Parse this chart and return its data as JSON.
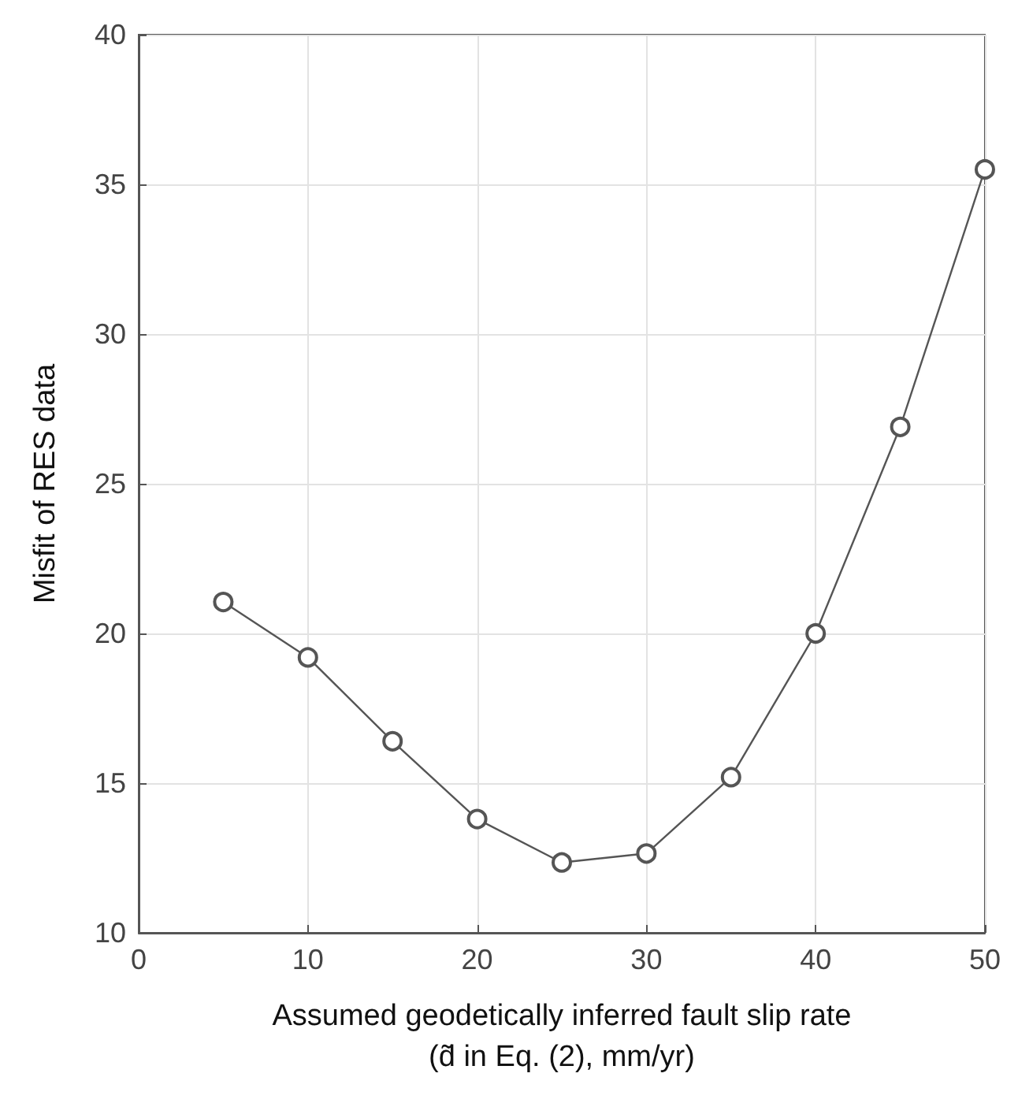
{
  "chart_data": {
    "type": "line",
    "xlabel": "Assumed geodetically inferred fault slip rate\n(d̃ in Eq. (2), mm/yr)",
    "ylabel": "Misfit of RES data",
    "x": [
      5,
      10,
      15,
      20,
      25,
      30,
      35,
      40,
      45,
      50
    ],
    "series": [
      {
        "color": "#555555",
        "values": [
          21.05,
          19.2,
          16.4,
          13.8,
          12.35,
          12.65,
          15.2,
          20.0,
          26.9,
          35.5
        ]
      }
    ],
    "xlim": [
      0,
      50
    ],
    "xticks": [
      0,
      10,
      20,
      30,
      40,
      50
    ],
    "ylim": [
      10,
      40
    ],
    "yticks": [
      10,
      15,
      20,
      25,
      30,
      35,
      40
    ],
    "grid": true,
    "marker": "circle",
    "line_style": "solid"
  }
}
